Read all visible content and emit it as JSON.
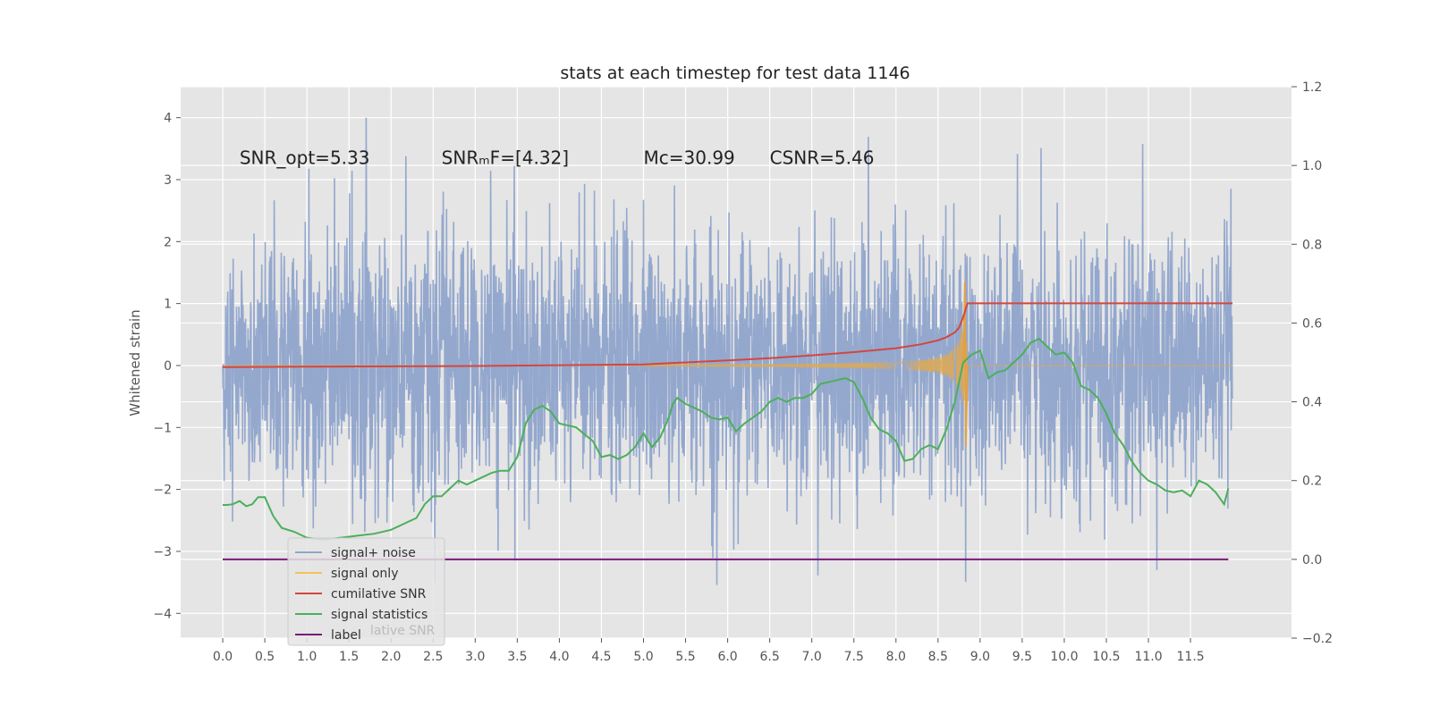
{
  "chart_data": {
    "type": "line",
    "title": "stats at each timestep for test data 1146",
    "ylabel": "Whitened strain",
    "xlim": [
      -0.5,
      12.7
    ],
    "ylim": [
      -4.4,
      4.5
    ],
    "y2lim": [
      -0.2,
      1.2
    ],
    "x_ticks": [
      "0.0",
      "0.5",
      "1.0",
      "1.5",
      "2.0",
      "2.5",
      "3.0",
      "3.5",
      "4.0",
      "4.5",
      "5.0",
      "5.5",
      "6.0",
      "6.5",
      "7.0",
      "7.5",
      "8.0",
      "8.5",
      "9.0",
      "9.5",
      "10.0",
      "10.5",
      "11.0",
      "11.5"
    ],
    "y_ticks": [
      "4",
      "3",
      "2",
      "1",
      "0",
      "−1",
      "−2",
      "−3",
      "−4"
    ],
    "y2_ticks": [
      "1.2",
      "1.0",
      "0.8",
      "0.6",
      "0.4",
      "0.2",
      "0.0",
      "−0.2"
    ],
    "annotations": [
      {
        "text": "SNR_opt=5.33",
        "x": 0.2,
        "y": 3.35
      },
      {
        "text": "SNRₘF=[4.32]",
        "x": 2.6,
        "y": 3.35
      },
      {
        "text": "Mᴄ=30.99",
        "x": 5.0,
        "y": 3.35
      },
      {
        "text": "CSNR=5.46",
        "x": 6.5,
        "y": 3.35
      }
    ],
    "legend": {
      "placement": "lower-left",
      "entries": [
        {
          "label": "signal+ noise",
          "color": "#8fa4cc"
        },
        {
          "label": "signal only",
          "color": "#f2c45a"
        },
        {
          "label": "cumilative SNR",
          "color": "#d2473f"
        },
        {
          "label": "signal statistics",
          "color": "#4caf5a"
        },
        {
          "label": "label",
          "color": "#7b1a7b"
        }
      ],
      "ghost_text": "lative SNR"
    },
    "series": [
      {
        "name": "signal+ noise",
        "axis": "left",
        "color": "#8fa4cc",
        "x_range": [
          0,
          12.0
        ],
        "amplitude_typical": 1.7,
        "amplitude_peak": 4.1
      },
      {
        "name": "signal only",
        "axis": "left",
        "color": "#f2c45a",
        "chirp_start": 5.0,
        "merger": 8.82,
        "peak": 1.35,
        "trough": -1.3
      },
      {
        "name": "cumilative SNR",
        "axis": "right",
        "color": "#d2473f",
        "x": [
          0,
          1,
          2,
          3,
          4,
          5,
          5.5,
          6,
          6.5,
          7,
          7.5,
          8,
          8.3,
          8.5,
          8.6,
          8.7,
          8.75,
          8.8,
          8.85,
          12.0
        ],
        "y": [
          0.488,
          0.489,
          0.49,
          0.491,
          0.493,
          0.495,
          0.5,
          0.505,
          0.511,
          0.518,
          0.526,
          0.536,
          0.546,
          0.556,
          0.564,
          0.576,
          0.588,
          0.615,
          0.65,
          0.65
        ]
      },
      {
        "name": "signal statistics",
        "axis": "right",
        "color": "#4caf5a",
        "x": [
          0,
          0.05,
          0.12,
          0.2,
          0.28,
          0.35,
          0.42,
          0.5,
          0.6,
          0.7,
          0.85,
          1.0,
          1.2,
          1.4,
          1.6,
          1.8,
          2.0,
          2.2,
          2.3,
          2.4,
          2.5,
          2.6,
          2.7,
          2.8,
          2.9,
          3.0,
          3.1,
          3.2,
          3.3,
          3.4,
          3.5,
          3.6,
          3.7,
          3.8,
          3.9,
          4.0,
          4.2,
          4.4,
          4.5,
          4.6,
          4.7,
          4.8,
          4.9,
          5.0,
          5.1,
          5.2,
          5.3,
          5.35,
          5.4,
          5.5,
          5.6,
          5.7,
          5.8,
          5.9,
          6.0,
          6.1,
          6.2,
          6.3,
          6.4,
          6.5,
          6.6,
          6.7,
          6.8,
          6.9,
          7.0,
          7.1,
          7.2,
          7.3,
          7.4,
          7.5,
          7.6,
          7.7,
          7.8,
          7.9,
          8.0,
          8.1,
          8.2,
          8.3,
          8.4,
          8.5,
          8.6,
          8.7,
          8.8,
          8.9,
          9.0,
          9.1,
          9.2,
          9.3,
          9.4,
          9.5,
          9.6,
          9.7,
          9.8,
          9.9,
          10.0,
          10.1,
          10.2,
          10.3,
          10.4,
          10.5,
          10.6,
          10.7,
          10.8,
          10.9,
          11.0,
          11.1,
          11.2,
          11.3,
          11.4,
          11.5,
          11.6,
          11.7,
          11.8,
          11.9,
          11.95
        ],
        "y": [
          0.138,
          0.138,
          0.14,
          0.148,
          0.135,
          0.14,
          0.158,
          0.158,
          0.11,
          0.08,
          0.07,
          0.055,
          0.05,
          0.055,
          0.06,
          0.065,
          0.075,
          0.095,
          0.105,
          0.14,
          0.16,
          0.16,
          0.18,
          0.2,
          0.19,
          0.2,
          0.21,
          0.22,
          0.225,
          0.225,
          0.26,
          0.345,
          0.38,
          0.39,
          0.375,
          0.345,
          0.335,
          0.3,
          0.26,
          0.265,
          0.255,
          0.265,
          0.285,
          0.32,
          0.285,
          0.31,
          0.36,
          0.395,
          0.41,
          0.395,
          0.385,
          0.375,
          0.36,
          0.355,
          0.36,
          0.325,
          0.345,
          0.36,
          0.375,
          0.4,
          0.41,
          0.4,
          0.41,
          0.41,
          0.42,
          0.445,
          0.45,
          0.455,
          0.46,
          0.45,
          0.41,
          0.36,
          0.33,
          0.32,
          0.3,
          0.25,
          0.255,
          0.28,
          0.29,
          0.28,
          0.33,
          0.4,
          0.5,
          0.52,
          0.53,
          0.46,
          0.475,
          0.48,
          0.5,
          0.52,
          0.55,
          0.56,
          0.54,
          0.52,
          0.525,
          0.5,
          0.44,
          0.43,
          0.41,
          0.37,
          0.32,
          0.29,
          0.25,
          0.22,
          0.2,
          0.19,
          0.175,
          0.17,
          0.175,
          0.16,
          0.2,
          0.19,
          0.17,
          0.14,
          0.18
        ]
      },
      {
        "name": "label",
        "axis": "right",
        "color": "#7b1a7b",
        "x": [
          0,
          11.95
        ],
        "y": [
          0,
          0
        ]
      }
    ]
  }
}
